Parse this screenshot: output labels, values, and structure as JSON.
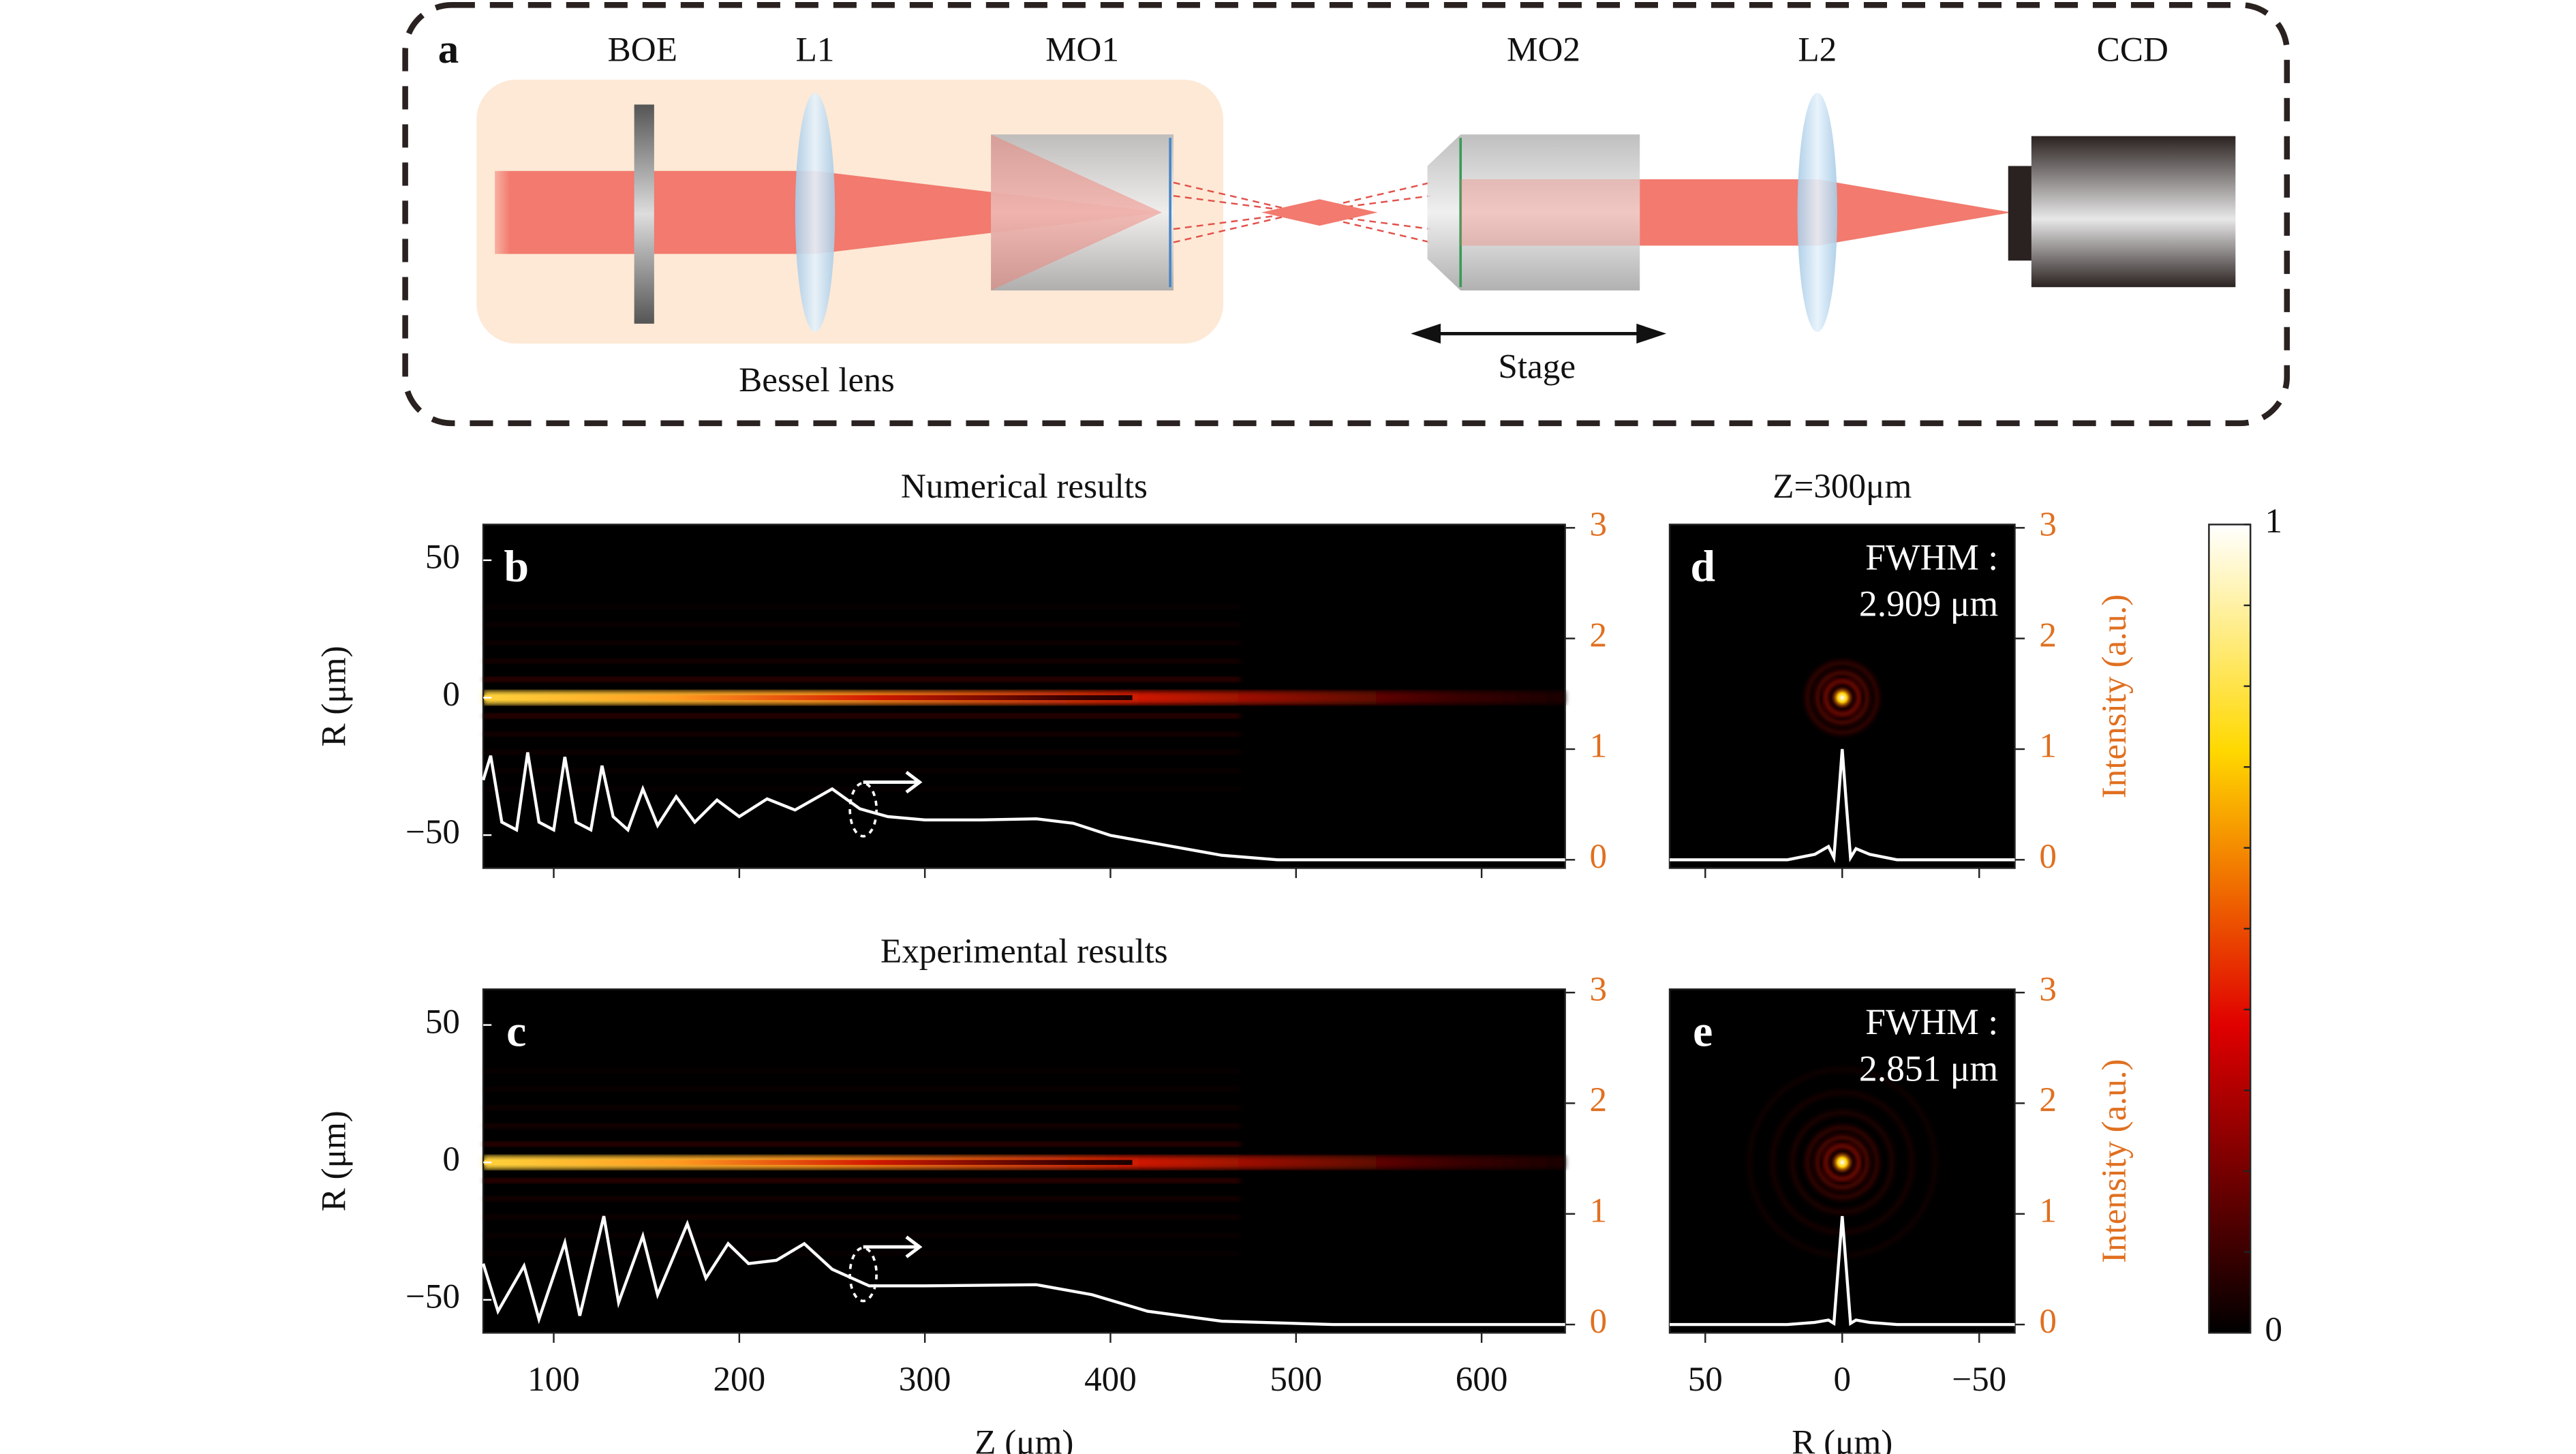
{
  "diagram": {
    "panel": "a",
    "labels": {
      "boe": "BOE",
      "l1": "L1",
      "mo1": "MO1",
      "mo2": "MO2",
      "l2": "L2",
      "ccd": "CCD",
      "bessel": "Bessel lens",
      "stage": "Stage"
    }
  },
  "chart_data": [
    {
      "type": "heatmap-profile",
      "panel": "b",
      "title": "Numerical results",
      "ylabel": "R (μm)",
      "xlim": [
        62,
        645
      ],
      "xticks": [
        100,
        200,
        300,
        400,
        500,
        600
      ],
      "xtick_labels": false,
      "ylim": [
        -62,
        63
      ],
      "yticks": [
        {
          "value": -50,
          "label": "−50"
        },
        0,
        50
      ],
      "y2lim": [
        -0.075,
        3.03
      ],
      "y2ticks": [
        0,
        1,
        2,
        3
      ],
      "color": "#ffffff",
      "x": [
        62,
        66,
        72,
        80,
        86,
        92,
        100,
        106,
        112,
        120,
        126,
        132,
        140,
        148,
        156,
        166,
        176,
        188,
        200,
        215,
        230,
        250,
        265,
        280,
        300,
        330,
        360,
        380,
        400,
        430,
        460,
        490,
        520,
        645
      ],
      "values": [
        0.72,
        0.94,
        0.34,
        0.27,
        0.97,
        0.34,
        0.27,
        0.93,
        0.34,
        0.27,
        0.85,
        0.39,
        0.27,
        0.64,
        0.31,
        0.57,
        0.34,
        0.54,
        0.39,
        0.55,
        0.45,
        0.64,
        0.46,
        0.39,
        0.36,
        0.36,
        0.37,
        0.33,
        0.22,
        0.13,
        0.04,
        0.0,
        0.0,
        0.0
      ]
    },
    {
      "type": "heatmap-profile",
      "panel": "c",
      "title": "Experimental results",
      "ylabel": "R (μm)",
      "xlabel": "Z (μm)",
      "xlim": [
        62,
        645
      ],
      "xticks": [
        100,
        200,
        300,
        400,
        500,
        600
      ],
      "ylim": [
        -62,
        63
      ],
      "yticks": [
        {
          "value": -50,
          "label": "−50"
        },
        0,
        50
      ],
      "y2lim": [
        -0.075,
        3.03
      ],
      "y2ticks": [
        0,
        1,
        2,
        3
      ],
      "color": "#ffffff",
      "x": [
        62,
        70,
        84,
        92,
        106,
        114,
        127,
        135,
        148,
        156,
        172,
        182,
        194,
        205,
        220,
        235,
        250,
        270,
        300,
        360,
        390,
        420,
        460,
        520,
        645
      ],
      "values": [
        0.55,
        0.12,
        0.53,
        0.05,
        0.74,
        0.08,
        0.98,
        0.2,
        0.8,
        0.27,
        0.91,
        0.42,
        0.73,
        0.55,
        0.58,
        0.73,
        0.5,
        0.35,
        0.35,
        0.36,
        0.27,
        0.12,
        0.03,
        0.0,
        0.0
      ]
    },
    {
      "type": "spot-profile",
      "panel": "d",
      "title": "Z=300μm",
      "y2label": "Intensity (a.u.)",
      "annotations": [
        "FWHM :",
        "2.909 μm"
      ],
      "xlim": [
        63,
        -63
      ],
      "xticks": [
        {
          "value": -50,
          "label": "−50"
        },
        0,
        50
      ],
      "xtick_labels": false,
      "ylim": [
        -62,
        63
      ],
      "y2lim": [
        -0.075,
        3.03
      ],
      "y2ticks": [
        0,
        1,
        2,
        3
      ],
      "color": "#ffffff",
      "x": [
        63,
        20,
        10,
        5,
        3,
        1.5,
        0,
        -1.5,
        -3,
        -5,
        -10,
        -20,
        -63
      ],
      "values": [
        0,
        0,
        0.05,
        0.12,
        0.02,
        0.5,
        1.0,
        0.5,
        0.02,
        0.1,
        0.05,
        0,
        0
      ]
    },
    {
      "type": "spot-profile",
      "panel": "e",
      "y2label": "Intensity (a.u.)",
      "xlabel": "R (μm)",
      "annotations": [
        "FWHM :",
        "2.851 μm"
      ],
      "xlim": [
        63,
        -63
      ],
      "xticks": [
        {
          "value": -50,
          "label": "−50"
        },
        0,
        50
      ],
      "ylim": [
        -62,
        63
      ],
      "y2lim": [
        -0.075,
        3.03
      ],
      "y2ticks": [
        0,
        1,
        2,
        3
      ],
      "color": "#ffffff",
      "x": [
        63,
        20,
        10,
        5,
        3,
        1.5,
        0,
        -1.5,
        -3,
        -5,
        -10,
        -20,
        -63
      ],
      "values": [
        0,
        0,
        0.02,
        0.04,
        0.01,
        0.5,
        0.98,
        0.5,
        0.01,
        0.04,
        0.02,
        0,
        0
      ]
    },
    {
      "type": "colorbar",
      "ylim": [
        0,
        1
      ],
      "yticks": [
        0,
        1
      ]
    }
  ]
}
